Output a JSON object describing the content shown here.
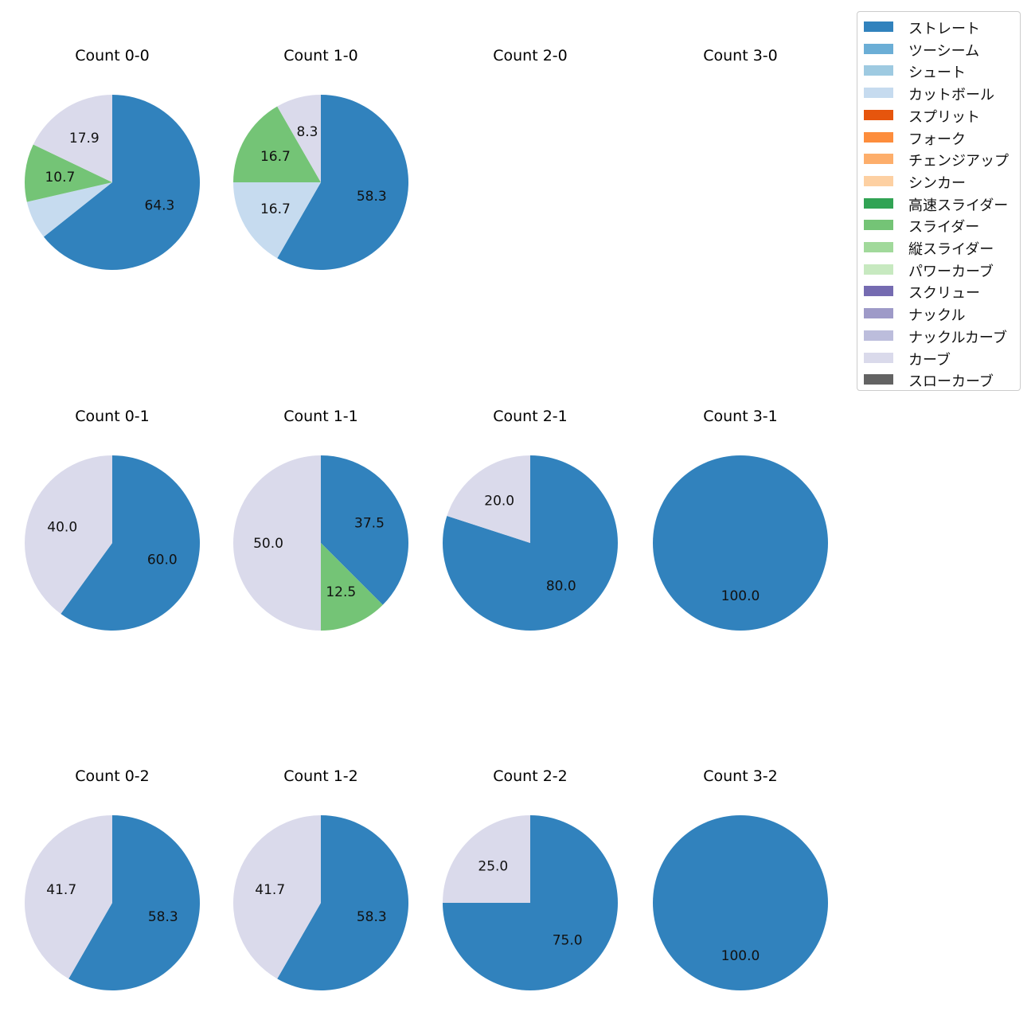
{
  "chart_data": {
    "type": "pie",
    "categories": [
      "ストレート",
      "ツーシーム",
      "シュート",
      "カットボール",
      "スプリット",
      "フォーク",
      "チェンジアップ",
      "シンカー",
      "高速スライダー",
      "スライダー",
      "縦スライダー",
      "パワーカーブ",
      "スクリュー",
      "ナックル",
      "ナックルカーブ",
      "カーブ",
      "スローカーブ"
    ],
    "colors": [
      "#3182bd",
      "#6baed6",
      "#9ecae1",
      "#c6dbef",
      "#e6550d",
      "#fd8d3c",
      "#fdae6b",
      "#fdd0a2",
      "#31a354",
      "#74c476",
      "#a1d99b",
      "#c7e9c0",
      "#756bb1",
      "#9e9ac8",
      "#bcbddc",
      "#dadaeb",
      "#636363"
    ],
    "charts": [
      {
        "title": "Count 0-0",
        "slices": [
          {
            "category": "ストレート",
            "value": 64.3
          },
          {
            "category": "カットボール",
            "value": 7.1
          },
          {
            "category": "スライダー",
            "value": 10.7
          },
          {
            "category": "カーブ",
            "value": 17.9
          }
        ],
        "labels": [
          "64.3",
          "",
          "10.7",
          "17.9"
        ]
      },
      {
        "title": "Count 1-0",
        "slices": [
          {
            "category": "ストレート",
            "value": 58.3
          },
          {
            "category": "カットボール",
            "value": 16.7
          },
          {
            "category": "スライダー",
            "value": 16.7
          },
          {
            "category": "カーブ",
            "value": 8.3
          }
        ],
        "labels": [
          "58.3",
          "16.7",
          "16.7",
          "8.3"
        ]
      },
      {
        "title": "Count 2-0",
        "slices": [],
        "labels": []
      },
      {
        "title": "Count 3-0",
        "slices": [],
        "labels": []
      },
      {
        "title": "Count 0-1",
        "slices": [
          {
            "category": "ストレート",
            "value": 60.0
          },
          {
            "category": "カーブ",
            "value": 40.0
          }
        ],
        "labels": [
          "60.0",
          "40.0"
        ]
      },
      {
        "title": "Count 1-1",
        "slices": [
          {
            "category": "ストレート",
            "value": 37.5
          },
          {
            "category": "スライダー",
            "value": 12.5
          },
          {
            "category": "カーブ",
            "value": 50.0
          }
        ],
        "labels": [
          "37.5",
          "12.5",
          "50.0"
        ]
      },
      {
        "title": "Count 2-1",
        "slices": [
          {
            "category": "ストレート",
            "value": 80.0
          },
          {
            "category": "カーブ",
            "value": 20.0
          }
        ],
        "labels": [
          "80.0",
          "20.0"
        ]
      },
      {
        "title": "Count 3-1",
        "slices": [
          {
            "category": "ストレート",
            "value": 100.0
          }
        ],
        "labels": [
          "100.0"
        ]
      },
      {
        "title": "Count 0-2",
        "slices": [
          {
            "category": "ストレート",
            "value": 58.3
          },
          {
            "category": "カーブ",
            "value": 41.7
          }
        ],
        "labels": [
          "58.3",
          "41.7"
        ]
      },
      {
        "title": "Count 1-2",
        "slices": [
          {
            "category": "ストレート",
            "value": 58.3
          },
          {
            "category": "カーブ",
            "value": 41.7
          }
        ],
        "labels": [
          "58.3",
          "41.7"
        ]
      },
      {
        "title": "Count 2-2",
        "slices": [
          {
            "category": "ストレート",
            "value": 75.0
          },
          {
            "category": "カーブ",
            "value": 25.0
          }
        ],
        "labels": [
          "75.0",
          "25.0"
        ]
      },
      {
        "title": "Count 3-2",
        "slices": [
          {
            "category": "ストレート",
            "value": 100.0
          }
        ],
        "labels": [
          "100.0"
        ]
      }
    ],
    "legend_position": "top-right"
  }
}
